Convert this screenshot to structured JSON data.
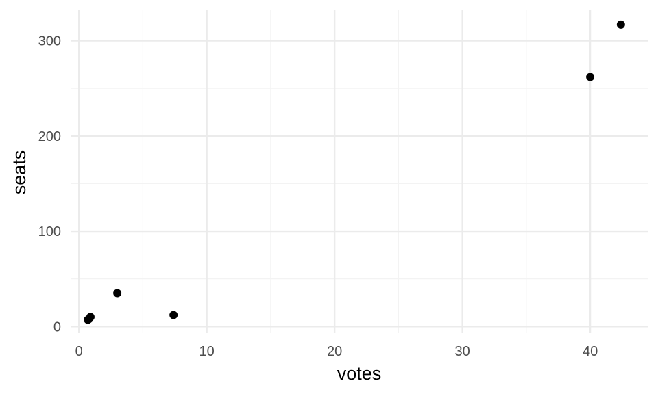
{
  "chart_data": {
    "type": "scatter",
    "title": "",
    "xlabel": "votes",
    "ylabel": "seats",
    "xlim": [
      -0.6,
      44.5
    ],
    "ylim": [
      -7,
      332
    ],
    "x_ticks": [
      0,
      10,
      20,
      30,
      40
    ],
    "x_tick_labels": [
      "0",
      "10",
      "20",
      "30",
      "40"
    ],
    "y_ticks": [
      0,
      100,
      200,
      300
    ],
    "y_tick_labels": [
      "0",
      "100",
      "200",
      "300"
    ],
    "grid": true,
    "legend": "none",
    "points": [
      {
        "x": 0.7,
        "y": 7
      },
      {
        "x": 0.8,
        "y": 8
      },
      {
        "x": 0.9,
        "y": 10
      },
      {
        "x": 3.0,
        "y": 35
      },
      {
        "x": 7.4,
        "y": 12
      },
      {
        "x": 40.0,
        "y": 262
      },
      {
        "x": 42.4,
        "y": 317
      }
    ],
    "colors": {
      "point": "#000000",
      "grid_major": "#ebebeb",
      "grid_minor": "#f3f3f3"
    }
  }
}
